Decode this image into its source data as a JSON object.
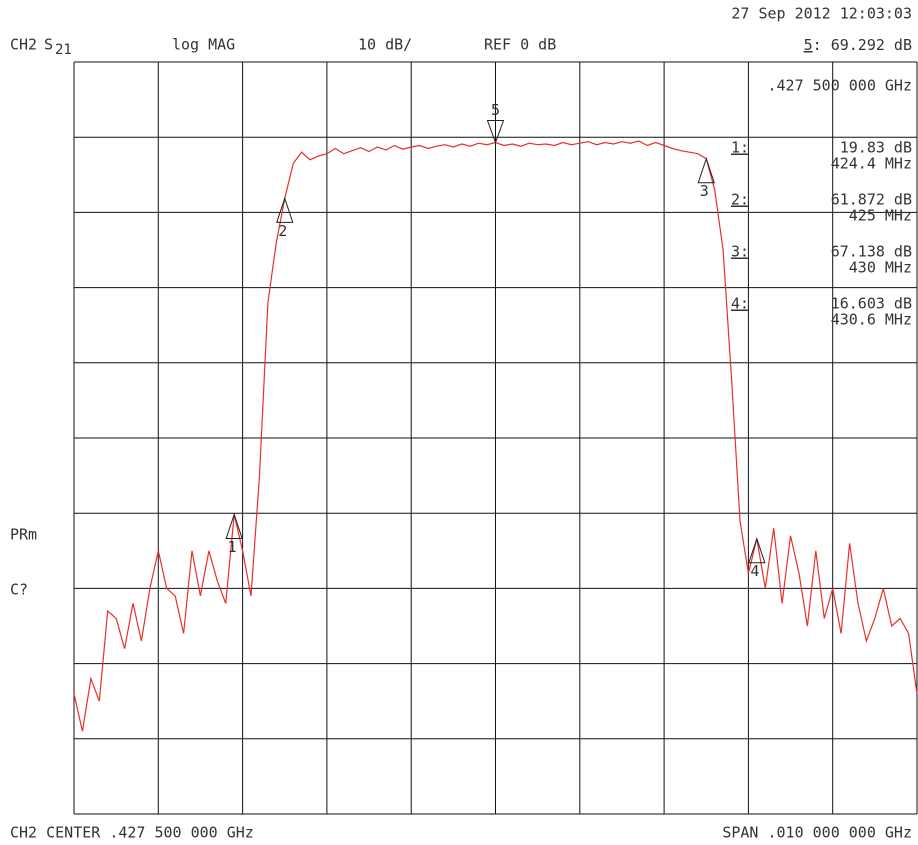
{
  "header": {
    "date": "27 Sep 2012  12:03:03",
    "channel": "CH2",
    "param_letter": "S",
    "param_sub": "21",
    "format": "log MAG",
    "scale": "10 dB/",
    "ref": "REF 0 dB",
    "active_name": "5",
    "active_value": ": 69.292 dB",
    "active_x": ".427 500 000 GHz",
    "status_1": "PRm",
    "status_2": "C?"
  },
  "footer": {
    "center": "CH2 CENTER  .427 500 000 GHz",
    "span": "SPAN  .010 000 000 GHz"
  },
  "chart_data": {
    "type": "line",
    "x": [
      422.5,
      422.6,
      422.7,
      422.8,
      422.9,
      423.0,
      423.1,
      423.2,
      423.3,
      423.4,
      423.5,
      423.6,
      423.7,
      423.8,
      423.9,
      424.0,
      424.1,
      424.2,
      424.3,
      424.4,
      424.5,
      424.6,
      424.7,
      424.8,
      424.9,
      425.0,
      425.1,
      425.2,
      425.3,
      425.4,
      425.5,
      425.6,
      425.7,
      425.8,
      425.9,
      426.0,
      426.1,
      426.2,
      426.3,
      426.4,
      426.5,
      426.6,
      426.7,
      426.8,
      426.9,
      427.0,
      427.1,
      427.2,
      427.3,
      427.4,
      427.5,
      427.6,
      427.7,
      427.8,
      427.9,
      428.0,
      428.1,
      428.2,
      428.3,
      428.4,
      428.5,
      428.6,
      428.7,
      428.8,
      428.9,
      429.0,
      429.1,
      429.2,
      429.3,
      429.4,
      429.5,
      429.6,
      429.7,
      429.8,
      429.9,
      430.0,
      430.1,
      430.2,
      430.3,
      430.4,
      430.5,
      430.6,
      430.7,
      430.8,
      430.9,
      431.0,
      431.1,
      431.2,
      431.3,
      431.4,
      431.5,
      431.6,
      431.7,
      431.8,
      431.9,
      432.0,
      432.1,
      432.2,
      432.3,
      432.4,
      432.5
    ],
    "series": [
      {
        "color": "#e8302a",
        "values": [
          -4,
          -9,
          -2,
          -5,
          7,
          6,
          2,
          8,
          3,
          10,
          15,
          10,
          9,
          4,
          15,
          9,
          15,
          11,
          8,
          19.83,
          15,
          9,
          25,
          48,
          56,
          61.872,
          66.5,
          68,
          67,
          67.5,
          67.8,
          68.5,
          67.8,
          68.2,
          68.6,
          68.1,
          68.7,
          68.3,
          68.9,
          68.4,
          68.7,
          68.9,
          68.5,
          68.8,
          69,
          68.7,
          69.1,
          68.8,
          69.2,
          69,
          69.292,
          68.9,
          69.1,
          68.8,
          69.2,
          69,
          69.1,
          68.9,
          69.3,
          69,
          69.2,
          69.4,
          69,
          69.3,
          69.1,
          69.4,
          69.2,
          69.5,
          68.9,
          69.3,
          68.9,
          68.5,
          68.2,
          68,
          67.8,
          67.138,
          63,
          55,
          38,
          19,
          12,
          16.603,
          10,
          18,
          8,
          17,
          12,
          5,
          15,
          6,
          10,
          4,
          16,
          8,
          3,
          6,
          10,
          5,
          6,
          4,
          -4
        ]
      }
    ],
    "markers": [
      {
        "name": "1",
        "list_name": "1:",
        "x": 424.4,
        "x_label": "424.4 MHz",
        "value": 19.83,
        "value_label": "19.83  dB"
      },
      {
        "name": "2",
        "list_name": "2:",
        "x": 425,
        "x_label": "425 MHz",
        "value": 61.872,
        "value_label": "61.872 dB"
      },
      {
        "name": "3",
        "list_name": "3:",
        "x": 430,
        "x_label": "430 MHz",
        "value": 67.138,
        "value_label": "67.138 dB"
      },
      {
        "name": "4",
        "list_name": "4:",
        "x": 430.6,
        "x_label": "430.6 MHz",
        "value": 16.603,
        "value_label": "16.603 dB"
      },
      {
        "name": "5",
        "x": 427.5,
        "value": 69.292
      }
    ],
    "xlim": [
      422.5,
      432.5
    ],
    "ylim": [
      -20,
      80
    ],
    "xticks": [
      422.5,
      423.5,
      424.5,
      425.5,
      426.5,
      427.5,
      428.5,
      429.5,
      430.5,
      431.5,
      432.5
    ],
    "yticks": [
      -20,
      -10,
      0,
      10,
      20,
      30,
      40,
      50,
      60,
      70,
      80
    ],
    "grid": true
  }
}
